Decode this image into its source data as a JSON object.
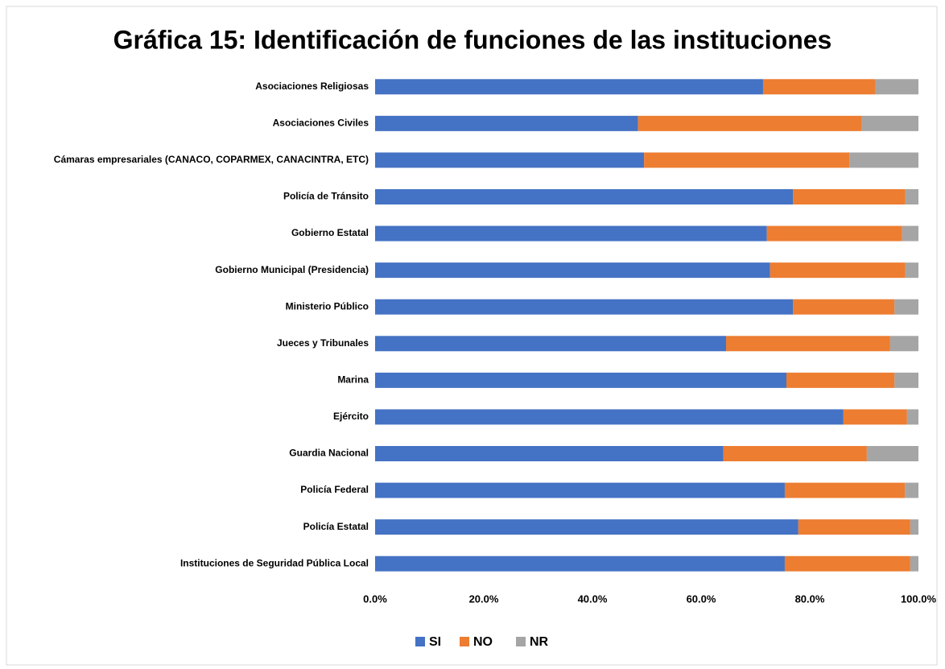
{
  "chart_data": {
    "type": "stacked_barh",
    "title": "Gráfica 15: Identificación de funciones de las instituciones",
    "categories": [
      "Asociaciones Religiosas",
      "Asociaciones Civiles",
      "Cámaras empresariales (CANACO, COPARMEX, CANACINTRA, ETC)",
      "Policía de Tránsito",
      "Gobierno Estatal",
      "Gobierno Municipal (Presidencia)",
      "Ministerio Público",
      "Jueces y Tribunales",
      "Marina",
      "Ejército",
      "Guardia Nacional",
      "Policía Federal",
      "Policía Estatal",
      "Instituciones de Seguridad Pública Local"
    ],
    "series": [
      {
        "name": "SI",
        "color": "#4472c4",
        "values": [
          71.4,
          48.4,
          49.5,
          76.9,
          72.1,
          72.7,
          76.9,
          64.6,
          75.7,
          86.2,
          64.1,
          75.4,
          77.9,
          75.4
        ]
      },
      {
        "name": "NO",
        "color": "#ed7d31",
        "values": [
          20.6,
          41.2,
          37.8,
          20.7,
          24.9,
          24.9,
          18.7,
          30.2,
          19.9,
          11.7,
          26.4,
          22.1,
          20.6,
          23.1
        ]
      },
      {
        "name": "NR",
        "color": "#a5a5a5",
        "values": [
          8.0,
          10.4,
          12.7,
          2.4,
          3.0,
          2.4,
          4.4,
          5.2,
          4.4,
          2.1,
          9.5,
          2.5,
          1.5,
          1.5
        ]
      }
    ],
    "xlim": [
      0,
      100
    ],
    "xticks": [
      {
        "value": 0,
        "label": "0.0%"
      },
      {
        "value": 20,
        "label": "20.0%"
      },
      {
        "value": 40,
        "label": "40.0%"
      },
      {
        "value": 60,
        "label": "60.0%"
      },
      {
        "value": 80,
        "label": "80.0%"
      },
      {
        "value": 100,
        "label": "100.0%"
      }
    ],
    "legend": "bottom"
  }
}
